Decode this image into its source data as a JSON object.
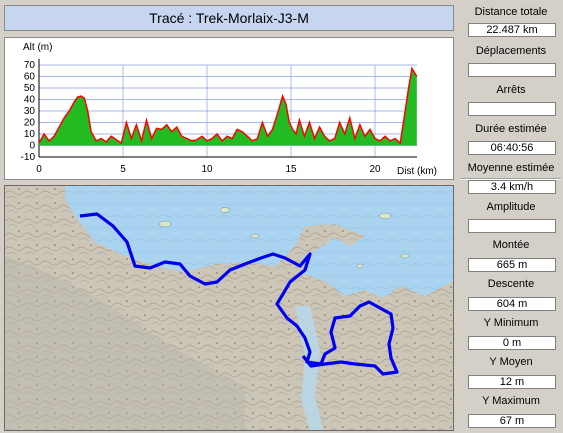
{
  "title": "Tracé : Trek-Morlaix-J3-M",
  "chart_data": {
    "type": "area",
    "ylabel": "Alt (m)",
    "xlabel": "Dist (km)",
    "ylim": [
      -10,
      70
    ],
    "xlim": [
      0,
      22.5
    ],
    "yticks": [
      "70",
      "60",
      "50",
      "40",
      "30",
      "20",
      "10",
      "0",
      "-10"
    ],
    "xticks": [
      "0",
      "5",
      "10",
      "15",
      "20"
    ],
    "grid": true,
    "x": [
      0,
      0.3,
      0.6,
      0.9,
      1.2,
      1.5,
      1.8,
      2.1,
      2.3,
      2.5,
      2.7,
      2.9,
      3.1,
      3.4,
      3.7,
      4.0,
      4.3,
      4.6,
      4.9,
      5.2,
      5.5,
      5.8,
      6.1,
      6.4,
      6.7,
      7.0,
      7.3,
      7.6,
      7.9,
      8.2,
      8.5,
      8.8,
      9.1,
      9.4,
      9.7,
      10.0,
      10.3,
      10.6,
      10.9,
      11.2,
      11.5,
      11.8,
      12.1,
      12.4,
      12.7,
      13.0,
      13.3,
      13.6,
      13.9,
      14.2,
      14.5,
      14.7,
      14.9,
      15.1,
      15.3,
      15.5,
      15.8,
      16.1,
      16.4,
      16.7,
      17.0,
      17.3,
      17.6,
      17.9,
      18.2,
      18.5,
      18.8,
      19.1,
      19.4,
      19.7,
      20.0,
      20.3,
      20.6,
      20.9,
      21.2,
      21.5,
      21.8,
      22.0,
      22.2,
      22.487
    ],
    "y": [
      2,
      10,
      4,
      8,
      16,
      24,
      30,
      38,
      42,
      43,
      41,
      30,
      12,
      4,
      6,
      3,
      8,
      5,
      2,
      20,
      6,
      18,
      4,
      22,
      6,
      15,
      14,
      18,
      12,
      16,
      8,
      6,
      4,
      5,
      8,
      4,
      6,
      10,
      4,
      8,
      6,
      14,
      12,
      8,
      4,
      6,
      20,
      8,
      14,
      28,
      43,
      36,
      20,
      14,
      10,
      22,
      8,
      20,
      6,
      16,
      8,
      4,
      6,
      20,
      10,
      24,
      6,
      18,
      8,
      14,
      6,
      4,
      8,
      4,
      6,
      2,
      30,
      50,
      67,
      60
    ]
  },
  "stats": [
    {
      "label": "Distance totale",
      "value": "22.487 km"
    },
    {
      "label": "Déplacements",
      "value": ""
    },
    {
      "label": "Arrêts",
      "value": ""
    },
    {
      "label": "Durée estimée",
      "value": "06:40:56"
    },
    {
      "label": "Moyenne estimée",
      "value": "3.4 km/h"
    },
    {
      "label": "Amplitude",
      "value": ""
    },
    {
      "label": "Montée",
      "value": "665 m"
    },
    {
      "label": "Descente",
      "value": "604 m"
    },
    {
      "label": "Y Minimum",
      "value": "0 m"
    },
    {
      "label": "Y Moyen",
      "value": "12 m"
    },
    {
      "label": "Y Maximum",
      "value": "67 m"
    }
  ],
  "colors": {
    "fill": "#22bb22",
    "line": "#ff0000",
    "grid": "#8aa0e0",
    "track": "#0000ee",
    "sea": "#a8d4f0",
    "land": "#c9c4b4"
  }
}
